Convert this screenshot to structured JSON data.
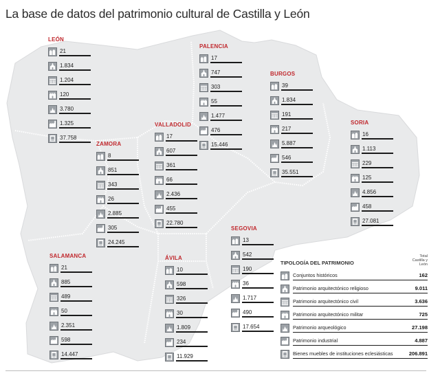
{
  "title": "La base de datos del patrimonio cultural de Castilla y León",
  "colors": {
    "province_name": "#c0282d",
    "map_fill": "#e9eaeb",
    "icon_fill": "#9ca1a6"
  },
  "icon_types": [
    "conjuntos-historicos-icon",
    "arquitectura-religiosa-icon",
    "arquitectura-civil-icon",
    "arquitectura-militar-icon",
    "arqueologico-icon",
    "industrial-icon",
    "bienes-muebles-icon"
  ],
  "provinces": {
    "leon": {
      "name": "LEÓN",
      "values": [
        "21",
        "1.834",
        "1.204",
        "120",
        "3.780",
        "1.325",
        "37.758"
      ]
    },
    "palencia": {
      "name": "PALENCIA",
      "values": [
        "17",
        "747",
        "303",
        "55",
        "1.477",
        "476",
        "15.446"
      ]
    },
    "burgos": {
      "name": "BURGOS",
      "values": [
        "39",
        "1.834",
        "191",
        "217",
        "5.887",
        "546",
        "35.551"
      ]
    },
    "soria": {
      "name": "SORIA",
      "values": [
        "16",
        "1.113",
        "229",
        "125",
        "4.856",
        "458",
        "27.081"
      ]
    },
    "zamora": {
      "name": "ZAMORA",
      "values": [
        "8",
        "851",
        "343",
        "26",
        "2.885",
        "305",
        "24.245"
      ]
    },
    "valladolid": {
      "name": "VALLADOLID",
      "values": [
        "17",
        "607",
        "361",
        "66",
        "2.436",
        "455",
        "22.780"
      ]
    },
    "segovia": {
      "name": "SEGOVIA",
      "values": [
        "13",
        "542",
        "190",
        "36",
        "1.717",
        "490",
        "17.654"
      ]
    },
    "salamanca": {
      "name": "SALAMANCA",
      "values": [
        "21",
        "885",
        "489",
        "50",
        "2.351",
        "598",
        "14.447"
      ]
    },
    "avila": {
      "name": "ÁVILA",
      "values": [
        "10",
        "598",
        "326",
        "30",
        "1.809",
        "234",
        "11.929"
      ]
    }
  },
  "legend": {
    "title": "TIPOLOGÍA DEL PATRIMONIO",
    "total_header": "Total Castilla y León",
    "items": [
      {
        "label": "Conjuntos históricos",
        "total": "162"
      },
      {
        "label": "Patrimonio arquitectónico religioso",
        "total": "9.011"
      },
      {
        "label": "Patrimonio arquitectónico civil",
        "total": "3.636"
      },
      {
        "label": "Patrimonio arquitectónico militar",
        "total": "725"
      },
      {
        "label": "Patrimonio arqueológico",
        "total": "27.198"
      },
      {
        "label": "Patrimonio industrial",
        "total": "4.887"
      },
      {
        "label": "Bienes muebles de instituciones eclesiásticas",
        "total": "206.891"
      }
    ]
  }
}
